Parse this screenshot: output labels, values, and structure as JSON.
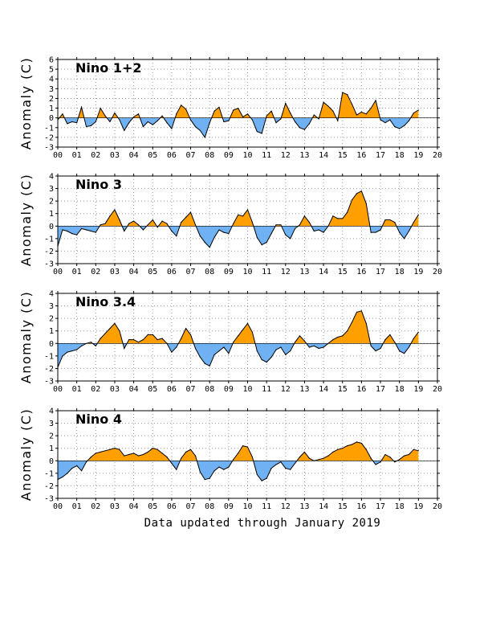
{
  "footer": "Data updated through January 2019",
  "chart_data": [
    {
      "type": "area",
      "title": "Nino 1+2",
      "ylabel": "Anomaly (C)",
      "ylim": [
        -3,
        6
      ],
      "yticks": [
        -3,
        -2,
        -1,
        0,
        1,
        2,
        3,
        4,
        5,
        6
      ],
      "xlim": [
        2000,
        2020
      ],
      "xtick_labels": [
        "00",
        "01",
        "02",
        "03",
        "04",
        "05",
        "06",
        "07",
        "08",
        "09",
        "10",
        "11",
        "12",
        "13",
        "14",
        "15",
        "16",
        "17",
        "18",
        "19",
        "20"
      ],
      "grid": true,
      "colors": {
        "positive": "#ff9f00",
        "negative": "#6fb1f2"
      },
      "x": [
        2000.0,
        2000.25,
        2000.5,
        2000.75,
        2001.0,
        2001.25,
        2001.5,
        2001.75,
        2002.0,
        2002.25,
        2002.5,
        2002.75,
        2003.0,
        2003.25,
        2003.5,
        2003.75,
        2004.0,
        2004.25,
        2004.5,
        2004.75,
        2005.0,
        2005.25,
        2005.5,
        2005.75,
        2006.0,
        2006.25,
        2006.5,
        2006.75,
        2007.0,
        2007.25,
        2007.5,
        2007.75,
        2008.0,
        2008.25,
        2008.5,
        2008.75,
        2009.0,
        2009.25,
        2009.5,
        2009.75,
        2010.0,
        2010.25,
        2010.5,
        2010.75,
        2011.0,
        2011.25,
        2011.5,
        2011.75,
        2012.0,
        2012.25,
        2012.5,
        2012.75,
        2013.0,
        2013.25,
        2013.5,
        2013.75,
        2014.0,
        2014.25,
        2014.5,
        2014.75,
        2015.0,
        2015.25,
        2015.5,
        2015.75,
        2016.0,
        2016.25,
        2016.5,
        2016.75,
        2017.0,
        2017.25,
        2017.5,
        2017.75,
        2018.0,
        2018.25,
        2018.5,
        2018.75,
        2019.0
      ],
      "values": [
        -0.2,
        0.4,
        -0.6,
        -0.4,
        -0.5,
        1.1,
        -0.9,
        -0.8,
        -0.4,
        1.0,
        0.2,
        -0.4,
        0.5,
        -0.2,
        -1.3,
        -0.5,
        0.1,
        0.4,
        -0.9,
        -0.4,
        -0.7,
        -0.3,
        0.2,
        -0.5,
        -1.1,
        0.4,
        1.3,
        0.9,
        -0.2,
        -0.9,
        -1.3,
        -2.0,
        -0.5,
        0.7,
        1.1,
        -0.4,
        -0.3,
        0.8,
        1.0,
        0.1,
        0.4,
        -0.2,
        -1.4,
        -1.6,
        0.2,
        0.7,
        -0.5,
        -0.1,
        1.5,
        0.5,
        -0.4,
        -1.0,
        -1.2,
        -0.6,
        0.3,
        -0.1,
        1.6,
        1.2,
        0.7,
        -0.3,
        2.6,
        2.4,
        1.4,
        0.3,
        0.6,
        0.4,
        1.0,
        1.8,
        -0.2,
        -0.5,
        -0.2,
        -0.9,
        -1.1,
        -0.8,
        -0.3,
        0.5,
        0.8
      ]
    },
    {
      "type": "area",
      "title": "Nino 3",
      "ylabel": "Anomaly (C)",
      "ylim": [
        -3,
        4
      ],
      "yticks": [
        -3,
        -2,
        -1,
        0,
        1,
        2,
        3,
        4
      ],
      "xlim": [
        2000,
        2020
      ],
      "xtick_labels": [
        "00",
        "01",
        "02",
        "03",
        "04",
        "05",
        "06",
        "07",
        "08",
        "09",
        "10",
        "11",
        "12",
        "13",
        "14",
        "15",
        "16",
        "17",
        "18",
        "19",
        "20"
      ],
      "grid": true,
      "colors": {
        "positive": "#ff9f00",
        "negative": "#6fb1f2"
      },
      "x": [
        2000.0,
        2000.25,
        2000.5,
        2000.75,
        2001.0,
        2001.25,
        2001.5,
        2001.75,
        2002.0,
        2002.25,
        2002.5,
        2002.75,
        2003.0,
        2003.25,
        2003.5,
        2003.75,
        2004.0,
        2004.25,
        2004.5,
        2004.75,
        2005.0,
        2005.25,
        2005.5,
        2005.75,
        2006.0,
        2006.25,
        2006.5,
        2006.75,
        2007.0,
        2007.25,
        2007.5,
        2007.75,
        2008.0,
        2008.25,
        2008.5,
        2008.75,
        2009.0,
        2009.25,
        2009.5,
        2009.75,
        2010.0,
        2010.25,
        2010.5,
        2010.75,
        2011.0,
        2011.25,
        2011.5,
        2011.75,
        2012.0,
        2012.25,
        2012.5,
        2012.75,
        2013.0,
        2013.25,
        2013.5,
        2013.75,
        2014.0,
        2014.25,
        2014.5,
        2014.75,
        2015.0,
        2015.25,
        2015.5,
        2015.75,
        2016.0,
        2016.25,
        2016.5,
        2016.75,
        2017.0,
        2017.25,
        2017.5,
        2017.75,
        2018.0,
        2018.25,
        2018.5,
        2018.75,
        2019.0
      ],
      "values": [
        -1.6,
        -0.3,
        -0.4,
        -0.6,
        -0.7,
        -0.2,
        -0.3,
        -0.4,
        -0.5,
        0.1,
        0.2,
        0.8,
        1.3,
        0.5,
        -0.4,
        0.2,
        0.4,
        0.1,
        -0.3,
        0.1,
        0.5,
        -0.1,
        0.4,
        0.2,
        -0.4,
        -0.8,
        0.3,
        0.7,
        1.1,
        0.1,
        -0.8,
        -1.3,
        -1.7,
        -0.9,
        -0.3,
        -0.5,
        -0.6,
        0.2,
        0.9,
        0.8,
        1.3,
        0.3,
        -0.9,
        -1.5,
        -1.3,
        -0.6,
        0.1,
        0.1,
        -0.7,
        -1.0,
        -0.2,
        0.1,
        0.8,
        0.3,
        -0.4,
        -0.3,
        -0.5,
        0.0,
        0.8,
        0.6,
        0.6,
        1.1,
        2.1,
        2.6,
        2.8,
        1.8,
        -0.5,
        -0.5,
        -0.3,
        0.5,
        0.5,
        0.3,
        -0.5,
        -1.0,
        -0.4,
        0.3,
        0.9
      ]
    },
    {
      "type": "area",
      "title": "Nino 3.4",
      "ylabel": "Anomaly (C)",
      "ylim": [
        -3,
        4
      ],
      "yticks": [
        -3,
        -2,
        -1,
        0,
        1,
        2,
        3,
        4
      ],
      "xlim": [
        2000,
        2020
      ],
      "xtick_labels": [
        "00",
        "01",
        "02",
        "03",
        "04",
        "05",
        "06",
        "07",
        "08",
        "09",
        "10",
        "11",
        "12",
        "13",
        "14",
        "15",
        "16",
        "17",
        "18",
        "19",
        "20"
      ],
      "grid": true,
      "colors": {
        "positive": "#ff9f00",
        "negative": "#6fb1f2"
      },
      "x": [
        2000.0,
        2000.25,
        2000.5,
        2000.75,
        2001.0,
        2001.25,
        2001.5,
        2001.75,
        2002.0,
        2002.25,
        2002.5,
        2002.75,
        2003.0,
        2003.25,
        2003.5,
        2003.75,
        2004.0,
        2004.25,
        2004.5,
        2004.75,
        2005.0,
        2005.25,
        2005.5,
        2005.75,
        2006.0,
        2006.25,
        2006.5,
        2006.75,
        2007.0,
        2007.25,
        2007.5,
        2007.75,
        2008.0,
        2008.25,
        2008.5,
        2008.75,
        2009.0,
        2009.25,
        2009.5,
        2009.75,
        2010.0,
        2010.25,
        2010.5,
        2010.75,
        2011.0,
        2011.25,
        2011.5,
        2011.75,
        2012.0,
        2012.25,
        2012.5,
        2012.75,
        2013.0,
        2013.25,
        2013.5,
        2013.75,
        2014.0,
        2014.25,
        2014.5,
        2014.75,
        2015.0,
        2015.25,
        2015.5,
        2015.75,
        2016.0,
        2016.25,
        2016.5,
        2016.75,
        2017.0,
        2017.25,
        2017.5,
        2017.75,
        2018.0,
        2018.25,
        2018.5,
        2018.75,
        2019.0
      ],
      "values": [
        -1.9,
        -1.0,
        -0.7,
        -0.6,
        -0.5,
        -0.2,
        0.0,
        0.1,
        -0.2,
        0.4,
        0.8,
        1.2,
        1.6,
        1.0,
        -0.4,
        0.3,
        0.3,
        0.1,
        0.3,
        0.7,
        0.7,
        0.3,
        0.4,
        0.0,
        -0.7,
        -0.3,
        0.4,
        1.2,
        0.7,
        -0.4,
        -1.1,
        -1.6,
        -1.8,
        -0.9,
        -0.6,
        -0.3,
        -0.8,
        0.1,
        0.6,
        1.1,
        1.6,
        0.9,
        -0.6,
        -1.3,
        -1.5,
        -1.1,
        -0.5,
        -0.3,
        -0.9,
        -0.6,
        0.1,
        0.6,
        0.2,
        -0.3,
        -0.2,
        -0.4,
        -0.3,
        0.0,
        0.3,
        0.5,
        0.6,
        1.0,
        1.7,
        2.5,
        2.6,
        1.6,
        -0.2,
        -0.6,
        -0.4,
        0.3,
        0.7,
        0.1,
        -0.6,
        -0.8,
        -0.3,
        0.4,
        0.9
      ]
    },
    {
      "type": "area",
      "title": "Nino 4",
      "ylabel": "Anomaly (C)",
      "ylim": [
        -3,
        4
      ],
      "yticks": [
        -3,
        -2,
        -1,
        0,
        1,
        2,
        3,
        4
      ],
      "xlim": [
        2000,
        2020
      ],
      "xtick_labels": [
        "00",
        "01",
        "02",
        "03",
        "04",
        "05",
        "06",
        "07",
        "08",
        "09",
        "10",
        "11",
        "12",
        "13",
        "14",
        "15",
        "16",
        "17",
        "18",
        "19",
        "20"
      ],
      "grid": true,
      "colors": {
        "positive": "#ff9f00",
        "negative": "#6fb1f2"
      },
      "x": [
        2000.0,
        2000.25,
        2000.5,
        2000.75,
        2001.0,
        2001.25,
        2001.5,
        2001.75,
        2002.0,
        2002.25,
        2002.5,
        2002.75,
        2003.0,
        2003.25,
        2003.5,
        2003.75,
        2004.0,
        2004.25,
        2004.5,
        2004.75,
        2005.0,
        2005.25,
        2005.5,
        2005.75,
        2006.0,
        2006.25,
        2006.5,
        2006.75,
        2007.0,
        2007.25,
        2007.5,
        2007.75,
        2008.0,
        2008.25,
        2008.5,
        2008.75,
        2009.0,
        2009.25,
        2009.5,
        2009.75,
        2010.0,
        2010.25,
        2010.5,
        2010.75,
        2011.0,
        2011.25,
        2011.5,
        2011.75,
        2012.0,
        2012.25,
        2012.5,
        2012.75,
        2013.0,
        2013.25,
        2013.5,
        2013.75,
        2014.0,
        2014.25,
        2014.5,
        2014.75,
        2015.0,
        2015.25,
        2015.5,
        2015.75,
        2016.0,
        2016.25,
        2016.5,
        2016.75,
        2017.0,
        2017.25,
        2017.5,
        2017.75,
        2018.0,
        2018.25,
        2018.5,
        2018.75,
        2019.0
      ],
      "values": [
        -1.5,
        -1.3,
        -1.0,
        -0.6,
        -0.4,
        -0.8,
        -0.1,
        0.3,
        0.6,
        0.7,
        0.8,
        0.9,
        1.0,
        0.9,
        0.4,
        0.5,
        0.6,
        0.4,
        0.5,
        0.7,
        1.0,
        0.9,
        0.6,
        0.3,
        -0.2,
        -0.7,
        0.2,
        0.7,
        0.9,
        0.4,
        -0.9,
        -1.5,
        -1.4,
        -0.8,
        -0.5,
        -0.7,
        -0.5,
        0.1,
        0.6,
        1.2,
        1.1,
        0.3,
        -1.1,
        -1.6,
        -1.4,
        -0.6,
        -0.3,
        -0.1,
        -0.6,
        -0.7,
        -0.2,
        0.3,
        0.7,
        0.2,
        0.0,
        0.1,
        0.2,
        0.4,
        0.7,
        0.9,
        1.0,
        1.2,
        1.3,
        1.5,
        1.4,
        0.9,
        0.2,
        -0.3,
        -0.1,
        0.5,
        0.3,
        -0.1,
        0.1,
        0.4,
        0.5,
        0.9,
        0.8
      ]
    }
  ]
}
